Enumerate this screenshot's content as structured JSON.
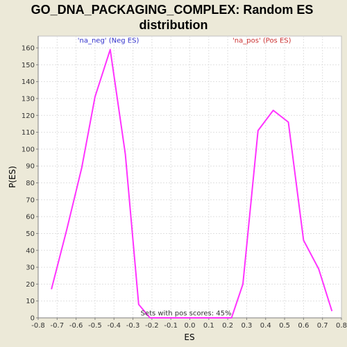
{
  "chart_data": {
    "type": "line",
    "title_line1": "GO_DNA_PACKAGING_COMPLEX: Random ES",
    "title_line2": "distribution",
    "xlabel": "ES",
    "ylabel": "P(ES)",
    "xlim": [
      -0.8,
      0.8
    ],
    "ylim": [
      0,
      167
    ],
    "x_ticks": [
      -0.8,
      -0.7,
      -0.6,
      -0.5,
      -0.4,
      -0.3,
      -0.2,
      -0.1,
      0.0,
      0.1,
      0.2,
      0.3,
      0.4,
      0.5,
      0.6,
      0.7,
      0.8
    ],
    "x_tick_labels": [
      "-0.8",
      "-0.7",
      "-0.6",
      "-0.5",
      "-0.4",
      "-0.3",
      "-0.2",
      "-0.1",
      "0.0",
      "0.1",
      "0.2",
      "0.3",
      "0.4",
      "0.5",
      "0.6",
      "0.7",
      "0.8"
    ],
    "y_ticks": [
      0,
      10,
      20,
      30,
      40,
      50,
      60,
      70,
      80,
      90,
      100,
      110,
      120,
      130,
      140,
      150,
      160
    ],
    "y_tick_labels": [
      "0",
      "10",
      "20",
      "30",
      "40",
      "50",
      "60",
      "70",
      "80",
      "90",
      "100",
      "110",
      "120",
      "130",
      "140",
      "150",
      "160"
    ],
    "grid": true,
    "line_color": "#ff33ff",
    "series": [
      {
        "x": [
          -0.73,
          -0.65,
          -0.57,
          -0.5,
          -0.42,
          -0.34,
          -0.27,
          -0.21,
          0.22,
          0.28,
          0.36,
          0.44,
          0.52,
          0.6,
          0.68,
          0.75
        ],
        "values": [
          17,
          52,
          89,
          131,
          159,
          97,
          8,
          0,
          0,
          20,
          111,
          123,
          116,
          46,
          29,
          4
        ]
      }
    ],
    "annotations": [
      {
        "text": "'na_neg' (Neg ES)",
        "color": "#3333cc",
        "x": -0.43,
        "y": 163
      },
      {
        "text": "'na_pos' (Pos ES)",
        "color": "#cc3333",
        "x": 0.38,
        "y": 163
      },
      {
        "text": "Sets with pos scores: 45%",
        "color": "#333333",
        "x": -0.02,
        "y": 1.5
      }
    ]
  }
}
